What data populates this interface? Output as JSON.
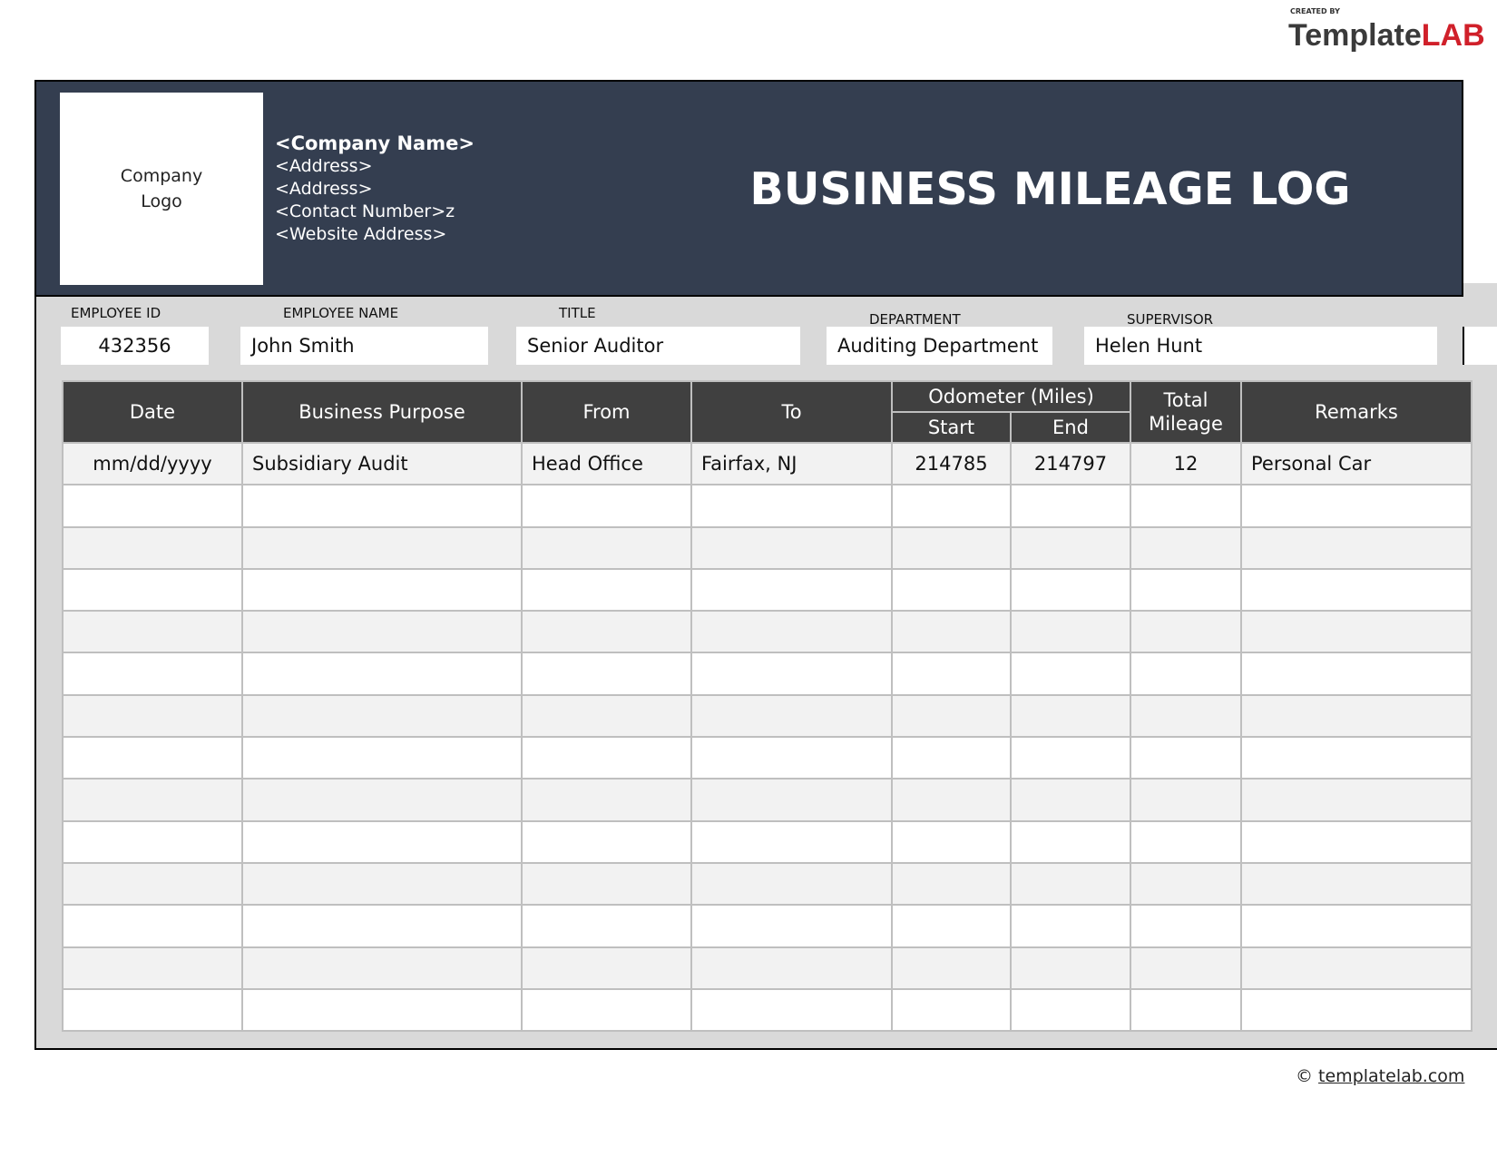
{
  "brand": {
    "created_by": "CREATED BY",
    "name_a": "Template",
    "name_b": "LAB"
  },
  "header": {
    "logo_line1": "Company",
    "logo_line2": "Logo",
    "company_name": "<Company Name>",
    "address1": "<Address>",
    "address2": "<Address>",
    "contact": "<Contact Number>z",
    "website": "<Website Address>",
    "title": "BUSINESS MILEAGE LOG"
  },
  "fields": {
    "employee_id": {
      "label": "EMPLOYEE ID",
      "value": "432356"
    },
    "employee_name": {
      "label": "EMPLOYEE NAME",
      "value": "John Smith"
    },
    "title": {
      "label": "TITLE",
      "value": "Senior Auditor"
    },
    "department": {
      "label": "DEPARTMENT",
      "value": "Auditing Department"
    },
    "supervisor": {
      "label": "SUPERVISOR",
      "value": "Helen Hunt"
    }
  },
  "table": {
    "headers": {
      "date": "Date",
      "purpose": "Business Purpose",
      "from": "From",
      "to": "To",
      "odometer": "Odometer (Miles)",
      "start": "Start",
      "end": "End",
      "total1": "Total",
      "total2": "Mileage",
      "remarks": "Remarks"
    },
    "rows": [
      [
        "mm/dd/yyyy",
        "Subsidiary Audit",
        "Head Office",
        "Fairfax, NJ",
        "214785",
        "214797",
        "12",
        "Personal Car"
      ]
    ],
    "empty_rows": 14
  },
  "footer": {
    "copyright": "©",
    "link": "templatelab.com"
  },
  "colors": {
    "header_bg": "#343e50",
    "table_header_bg": "#404040",
    "panel_bg": "#d9d9d9",
    "alt_row": "#f2f2f2",
    "brand_red": "#d0202a"
  }
}
